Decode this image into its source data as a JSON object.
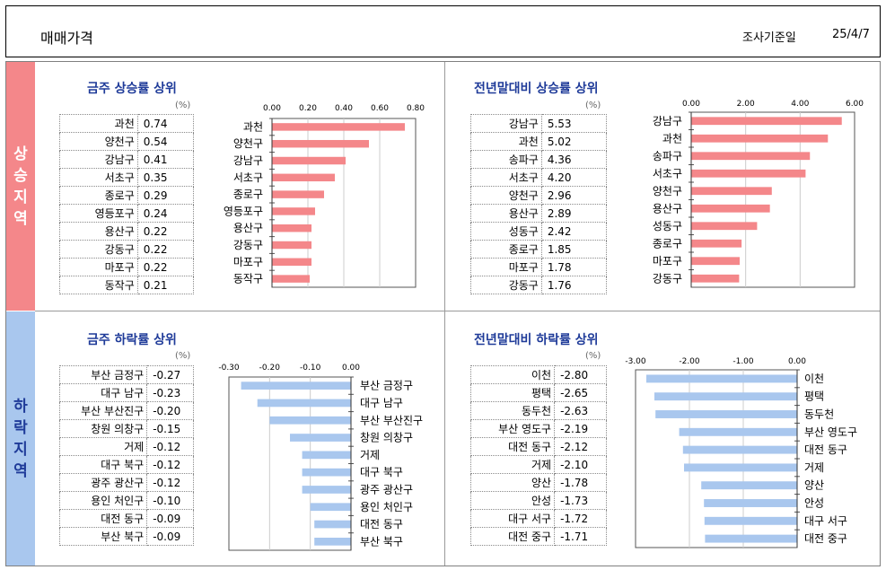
{
  "header": {
    "title": "매매가격",
    "date_label": "조사기준일",
    "date_value": "25/4/7"
  },
  "side": {
    "up": [
      "상",
      "승",
      "지",
      "역"
    ],
    "down": [
      "하",
      "락",
      "지",
      "역"
    ]
  },
  "colors": {
    "up_bar": "#f4878a",
    "down_bar": "#a9c7ee",
    "title": "#1f3b99"
  },
  "panels": {
    "weekly_up": {
      "title": "금주 상승률 상위",
      "unit": "(%)"
    },
    "ytd_up": {
      "title": "전년말대비 상승률 상위",
      "unit": "(%)"
    },
    "weekly_down": {
      "title": "금주 하락률 상위",
      "unit": "(%)"
    },
    "ytd_down": {
      "title": "전년말대비 하락률 상위",
      "unit": "(%)"
    }
  },
  "chart_data": [
    {
      "type": "bar",
      "title": "금주 상승률 상위",
      "categories": [
        "과천",
        "양천구",
        "강남구",
        "서초구",
        "종로구",
        "영등포구",
        "용산구",
        "강동구",
        "마포구",
        "동작구"
      ],
      "values": [
        0.74,
        0.54,
        0.41,
        0.35,
        0.29,
        0.24,
        0.22,
        0.22,
        0.22,
        0.21
      ],
      "display": [
        "0.74",
        "0.54",
        "0.41",
        "0.35",
        "0.29",
        "0.24",
        "0.22",
        "0.22",
        "0.22",
        "0.21"
      ],
      "xlim": [
        0,
        0.8
      ],
      "ticks": [
        "0.00",
        "0.20",
        "0.40",
        "0.60",
        "0.80"
      ],
      "orientation": "horizontal",
      "grid": true
    },
    {
      "type": "bar",
      "title": "전년말대비 상승률 상위",
      "categories": [
        "강남구",
        "과천",
        "송파구",
        "서초구",
        "양천구",
        "용산구",
        "성동구",
        "종로구",
        "마포구",
        "강동구"
      ],
      "values": [
        5.53,
        5.02,
        4.36,
        4.2,
        2.96,
        2.89,
        2.42,
        1.85,
        1.78,
        1.76
      ],
      "display": [
        "5.53",
        "5.02",
        "4.36",
        "4.20",
        "2.96",
        "2.89",
        "2.42",
        "1.85",
        "1.78",
        "1.76"
      ],
      "xlim": [
        0,
        6
      ],
      "ticks": [
        "0.00",
        "2.00",
        "4.00",
        "6.00"
      ],
      "orientation": "horizontal",
      "grid": true
    },
    {
      "type": "bar",
      "title": "금주 하락률 상위",
      "categories": [
        "부산 금정구",
        "대구 남구",
        "부산 부산진구",
        "창원 의창구",
        "거제",
        "대구 북구",
        "광주 광산구",
        "용인 처인구",
        "대전 동구",
        "부산 북구"
      ],
      "values": [
        -0.27,
        -0.23,
        -0.2,
        -0.15,
        -0.12,
        -0.12,
        -0.12,
        -0.1,
        -0.09,
        -0.09
      ],
      "display": [
        "-0.27",
        "-0.23",
        "-0.20",
        "-0.15",
        "-0.12",
        "-0.12",
        "-0.12",
        "-0.10",
        "-0.09",
        "-0.09"
      ],
      "xlim": [
        -0.3,
        0
      ],
      "ticks": [
        "-0.30",
        "-0.20",
        "-0.10",
        "0.00"
      ],
      "orientation": "horizontal",
      "grid": true
    },
    {
      "type": "bar",
      "title": "전년말대비 하락률 상위",
      "categories": [
        "이천",
        "평택",
        "동두천",
        "부산 영도구",
        "대전 동구",
        "거제",
        "양산",
        "안성",
        "대구 서구",
        "대전 중구"
      ],
      "values": [
        -2.8,
        -2.65,
        -2.63,
        -2.19,
        -2.12,
        -2.1,
        -1.78,
        -1.73,
        -1.72,
        -1.71
      ],
      "display": [
        "-2.80",
        "-2.65",
        "-2.63",
        "-2.19",
        "-2.12",
        "-2.10",
        "-1.78",
        "-1.73",
        "-1.72",
        "-1.71"
      ],
      "xlim": [
        -3,
        0
      ],
      "ticks": [
        "-3.00",
        "-2.00",
        "-1.00",
        "0.00"
      ],
      "orientation": "horizontal",
      "grid": true
    }
  ]
}
